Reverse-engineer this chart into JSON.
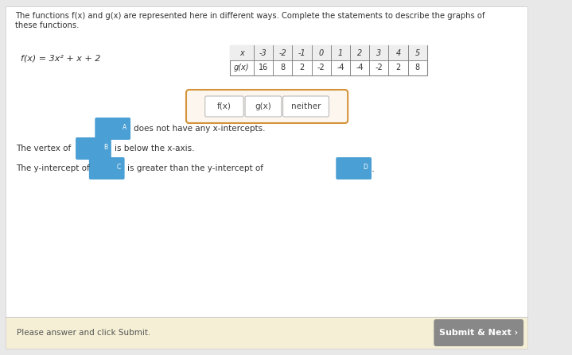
{
  "bg_color": "#e8e8e8",
  "page_bg": "#ffffff",
  "title_text1": "The functions f(x) and g(x) are represented here in different ways. Complete the statements to describe the graphs of",
  "title_text2": "these functions.",
  "fx_label": "f(x) = 3x² + x + 2",
  "table_x_vals": [
    "-3",
    "-2",
    "-1",
    "0",
    "1",
    "2",
    "3",
    "4",
    "5"
  ],
  "table_gx_vals": [
    "16",
    "8",
    "2",
    "-2",
    "-4",
    "-4",
    "-2",
    "2",
    "8"
  ],
  "btn_fx": "f(x)",
  "btn_gx": "g(x)",
  "btn_neither": "neither",
  "btn_color": "#4a9fd4",
  "btn_border_color": "#d4933a",
  "btn_bg": "#fdf6ee",
  "label_a": "A",
  "label_b": "B",
  "label_c": "C",
  "label_d": "D",
  "line1_post": "does not have any x-intercepts.",
  "line2_pre": "The vertex of",
  "line2_post": "is below the x-axis.",
  "line3_pre": "The y-intercept of",
  "line3_mid": "is greater than the y-intercept of",
  "footer_text": "Please answer and click Submit.",
  "submit_btn": "Submit & Next ›",
  "submit_bg": "#888888",
  "footer_bg": "#f5f0d5"
}
